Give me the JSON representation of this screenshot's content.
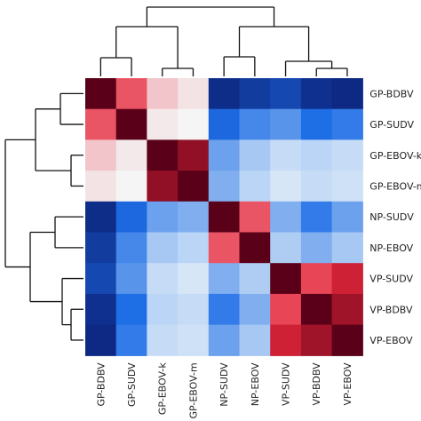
{
  "chart_data": {
    "type": "heatmap",
    "rows": [
      "GP-BDBV",
      "GP-SUDV",
      "GP-EBOV-k",
      "GP-EBOV-m",
      "NP-SUDV",
      "NP-EBOV",
      "VP-SUDV",
      "VP-BDBV",
      "VP-EBOV"
    ],
    "columns": [
      "GP-BDBV",
      "GP-SUDV",
      "GP-EBOV-k",
      "GP-EBOV-m",
      "NP-SUDV",
      "NP-EBOV",
      "VP-SUDV",
      "VP-BDBV",
      "VP-EBOV"
    ],
    "values": [
      [
        1.0,
        0.55,
        0.18,
        0.08,
        -0.9,
        -0.82,
        -0.75,
        -0.88,
        -0.92
      ],
      [
        0.55,
        1.0,
        0.06,
        0.02,
        -0.58,
        -0.45,
        -0.4,
        -0.55,
        -0.5
      ],
      [
        0.18,
        0.06,
        1.0,
        0.88,
        -0.35,
        -0.2,
        -0.12,
        -0.15,
        -0.12
      ],
      [
        0.08,
        0.02,
        0.88,
        1.0,
        -0.3,
        -0.15,
        -0.08,
        -0.12,
        -0.1
      ],
      [
        -0.9,
        -0.58,
        -0.35,
        -0.3,
        1.0,
        0.55,
        -0.3,
        -0.5,
        -0.35
      ],
      [
        -0.82,
        -0.45,
        -0.2,
        -0.15,
        0.55,
        1.0,
        -0.18,
        -0.3,
        -0.2
      ],
      [
        -0.75,
        -0.4,
        -0.12,
        -0.08,
        -0.3,
        -0.18,
        1.0,
        0.6,
        0.75
      ],
      [
        -0.88,
        -0.55,
        -0.15,
        -0.12,
        -0.5,
        -0.3,
        0.6,
        1.0,
        0.85
      ],
      [
        -0.92,
        -0.5,
        -0.12,
        -0.1,
        -0.35,
        -0.2,
        0.75,
        0.85,
        1.0
      ]
    ],
    "colorscale": {
      "min": -1,
      "max": 1,
      "low": "#0a1a6e",
      "mid": "#f5fbfa",
      "high": "#5a0018"
    },
    "dendrogram": "row and column hierarchical clustering trees"
  }
}
